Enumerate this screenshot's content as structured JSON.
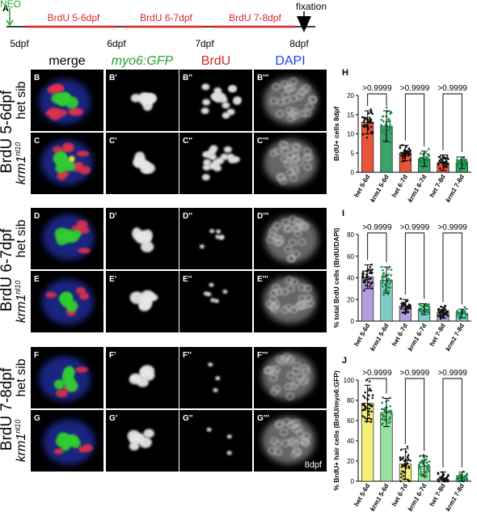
{
  "timeline": {
    "panel_letter": "A",
    "neo_label": "NEO",
    "fixation_label": "fixation",
    "intervals": [
      "BrdU 5-6dpf",
      "BrdU 6-7dpf",
      "BrdU 7-8dpf"
    ],
    "ticks": [
      "5dpf",
      "6dpf",
      "7dpf",
      "8dpf"
    ],
    "colors": {
      "neo": "#2ca02c",
      "interval": "#d62728"
    }
  },
  "columns": [
    "merge",
    "myo6:GFP",
    "BrdU",
    "DAPI"
  ],
  "column_colors": [
    "#000000",
    "#2ca02c",
    "#d62728",
    "#1f3fff"
  ],
  "groups": [
    {
      "label": "BrdU 5-6dpf",
      "rows": [
        {
          "genotype": "het sib",
          "letters": [
            "B",
            "B'",
            "B''",
            "B'''"
          ]
        },
        {
          "genotype": "krm1",
          "sup": "nl10",
          "letters": [
            "C",
            "C'",
            "C''",
            "C'''"
          ]
        }
      ]
    },
    {
      "label": "BrdU 6-7dpf",
      "rows": [
        {
          "genotype": "het sib",
          "letters": [
            "D",
            "D'",
            "D''",
            "D'''"
          ]
        },
        {
          "genotype": "krm1",
          "sup": "nl10",
          "letters": [
            "E",
            "E'",
            "E''",
            "E'''"
          ]
        }
      ]
    },
    {
      "label": "BrdU 7-8dpf",
      "rows": [
        {
          "genotype": "het sib",
          "letters": [
            "F",
            "F'",
            "F''",
            "F'''"
          ]
        },
        {
          "genotype": "krm1",
          "sup": "nl10",
          "letters": [
            "G",
            "G'",
            "G''",
            "G'''"
          ]
        }
      ]
    }
  ],
  "stamp": "8dpf",
  "chart_data": [
    {
      "panel": "H",
      "type": "bar",
      "ylabel": "BrdU+ cells 8dpf",
      "ylim": [
        0,
        20
      ],
      "yticks": [
        0,
        5,
        10,
        15,
        20
      ],
      "categories": [
        "het 5-6d",
        "krm1 5-6d",
        "het 6-7d",
        "krm1 6-7d",
        "het 7-8d",
        "krm1 7-8d"
      ],
      "values": [
        13,
        12,
        5,
        3.5,
        2.5,
        2.5
      ],
      "errors": [
        3,
        4,
        2,
        2,
        2,
        1.5
      ],
      "colors": [
        "#e8553a",
        "#3aa36a",
        "#e8553a",
        "#3aa36a",
        "#e8553a",
        "#3aa36a"
      ],
      "comparisons": [
        [
          0,
          1,
          ">0.9999"
        ],
        [
          2,
          3,
          ">0.9999"
        ],
        [
          4,
          5,
          ">0.9999"
        ]
      ]
    },
    {
      "panel": "I",
      "type": "bar",
      "ylabel": "% total BrdU cells (BrdU/DAPI)",
      "ylim": [
        0,
        80
      ],
      "yticks": [
        0,
        20,
        40,
        60,
        80
      ],
      "categories": [
        "het 5-6d",
        "krm1 5-6d",
        "het 6-7d",
        "krm1 6-7d",
        "het 7-8d",
        "krm1 7-8d"
      ],
      "values": [
        41,
        38,
        14,
        11,
        8,
        7
      ],
      "errors": [
        11,
        12,
        6,
        5,
        5,
        4
      ],
      "colors": [
        "#b39ddb",
        "#80cbc4",
        "#b39ddb",
        "#80cbc4",
        "#b39ddb",
        "#80cbc4"
      ],
      "comparisons": [
        [
          0,
          1,
          ">0.9999"
        ],
        [
          2,
          3,
          ">0.9999"
        ],
        [
          4,
          5,
          ">0.9999"
        ]
      ]
    },
    {
      "panel": "J",
      "type": "bar",
      "ylabel": "% BrdU+ hair cells (BrdU/myo6:GFP)",
      "ylim": [
        0,
        100
      ],
      "yticks": [
        0,
        20,
        40,
        60,
        80,
        100
      ],
      "categories": [
        "het 5-6d",
        "krm1 5-6d",
        "het 6-7d",
        "krm1 6-7d",
        "het 7-8d",
        "krm1 7-8d"
      ],
      "values": [
        77,
        68,
        17,
        15,
        2,
        3
      ],
      "errors": [
        18,
        14,
        15,
        10,
        7,
        6
      ],
      "colors": [
        "#f5f07a",
        "#9be0a0",
        "#f5f07a",
        "#9be0a0",
        "#f5f07a",
        "#9be0a0"
      ],
      "comparisons": [
        [
          0,
          1,
          ">0.9999"
        ],
        [
          2,
          3,
          ">0.9999"
        ],
        [
          4,
          5,
          ">0.9999"
        ]
      ]
    }
  ]
}
